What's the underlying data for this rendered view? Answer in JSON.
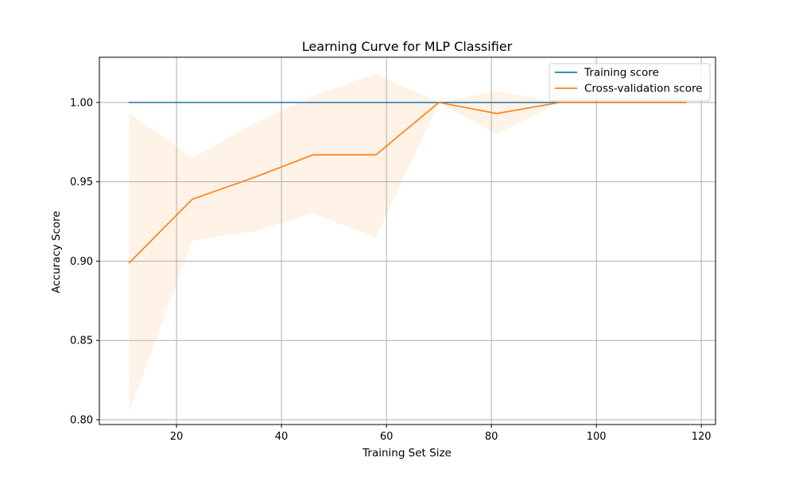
{
  "chart_data": {
    "type": "line",
    "title": "Learning Curve for MLP Classifier",
    "xlabel": "Training Set Size",
    "ylabel": "Accuracy Score",
    "xlim": [
      5.3,
      122.7
    ],
    "ylim": [
      0.797,
      1.0285
    ],
    "xticks": [
      20,
      40,
      60,
      80,
      100,
      120
    ],
    "yticks": [
      0.8,
      0.85,
      0.9,
      0.95,
      1.0
    ],
    "ytick_labels": [
      "0.80",
      "0.85",
      "0.90",
      "0.95",
      "1.00"
    ],
    "grid": true,
    "legend_position": "top-right",
    "x": [
      11,
      23,
      35,
      46,
      58,
      70,
      81,
      93,
      105,
      117
    ],
    "series": [
      {
        "name": "Training score",
        "color": "#1f77b4",
        "values": [
          1.0,
          1.0,
          1.0,
          1.0,
          1.0,
          1.0,
          1.0,
          1.0,
          1.0,
          1.0
        ]
      },
      {
        "name": "Cross-validation score",
        "color": "#ff7f0e",
        "values": [
          0.899,
          0.939,
          0.953,
          0.967,
          0.967,
          1.0,
          0.993,
          1.0,
          1.0,
          1.0
        ],
        "band_upper": [
          0.993,
          0.965,
          0.987,
          1.004,
          1.018,
          1.0,
          1.007,
          1.0,
          1.0,
          1.0
        ],
        "band_lower": [
          0.805,
          0.913,
          0.919,
          0.93,
          0.915,
          1.0,
          0.98,
          1.0,
          1.0,
          1.0
        ],
        "band_color": "#ff7f0e"
      }
    ]
  }
}
